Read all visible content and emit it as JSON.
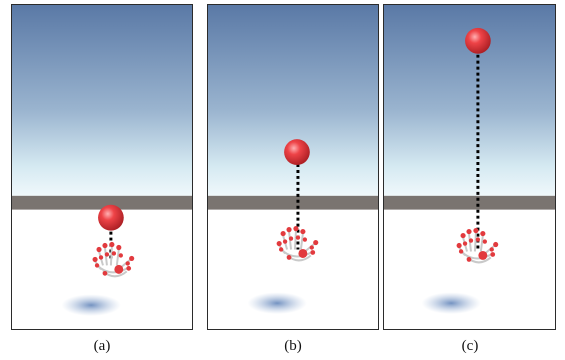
{
  "figure": {
    "panels": [
      {
        "id": "a",
        "caption": "(a)"
      },
      {
        "id": "b",
        "caption": "(b)"
      },
      {
        "id": "c",
        "caption": "(c)"
      }
    ]
  },
  "colors": {
    "sky_top": "#5b7ba8",
    "sky_horizon": "#eef7fb",
    "horizon_band": "#7a7470",
    "ground": "#ffffff",
    "sphere": "#e23a3e",
    "sphere_highlight": "#ff9a9c",
    "tether": "#000000",
    "shadow": "#6e8fc0",
    "frame_border": "#2b2b2b"
  },
  "icons": [
    "red-sphere-icon",
    "hand-skeleton-icon",
    "dashed-tether-icon",
    "shadow-icon"
  ]
}
